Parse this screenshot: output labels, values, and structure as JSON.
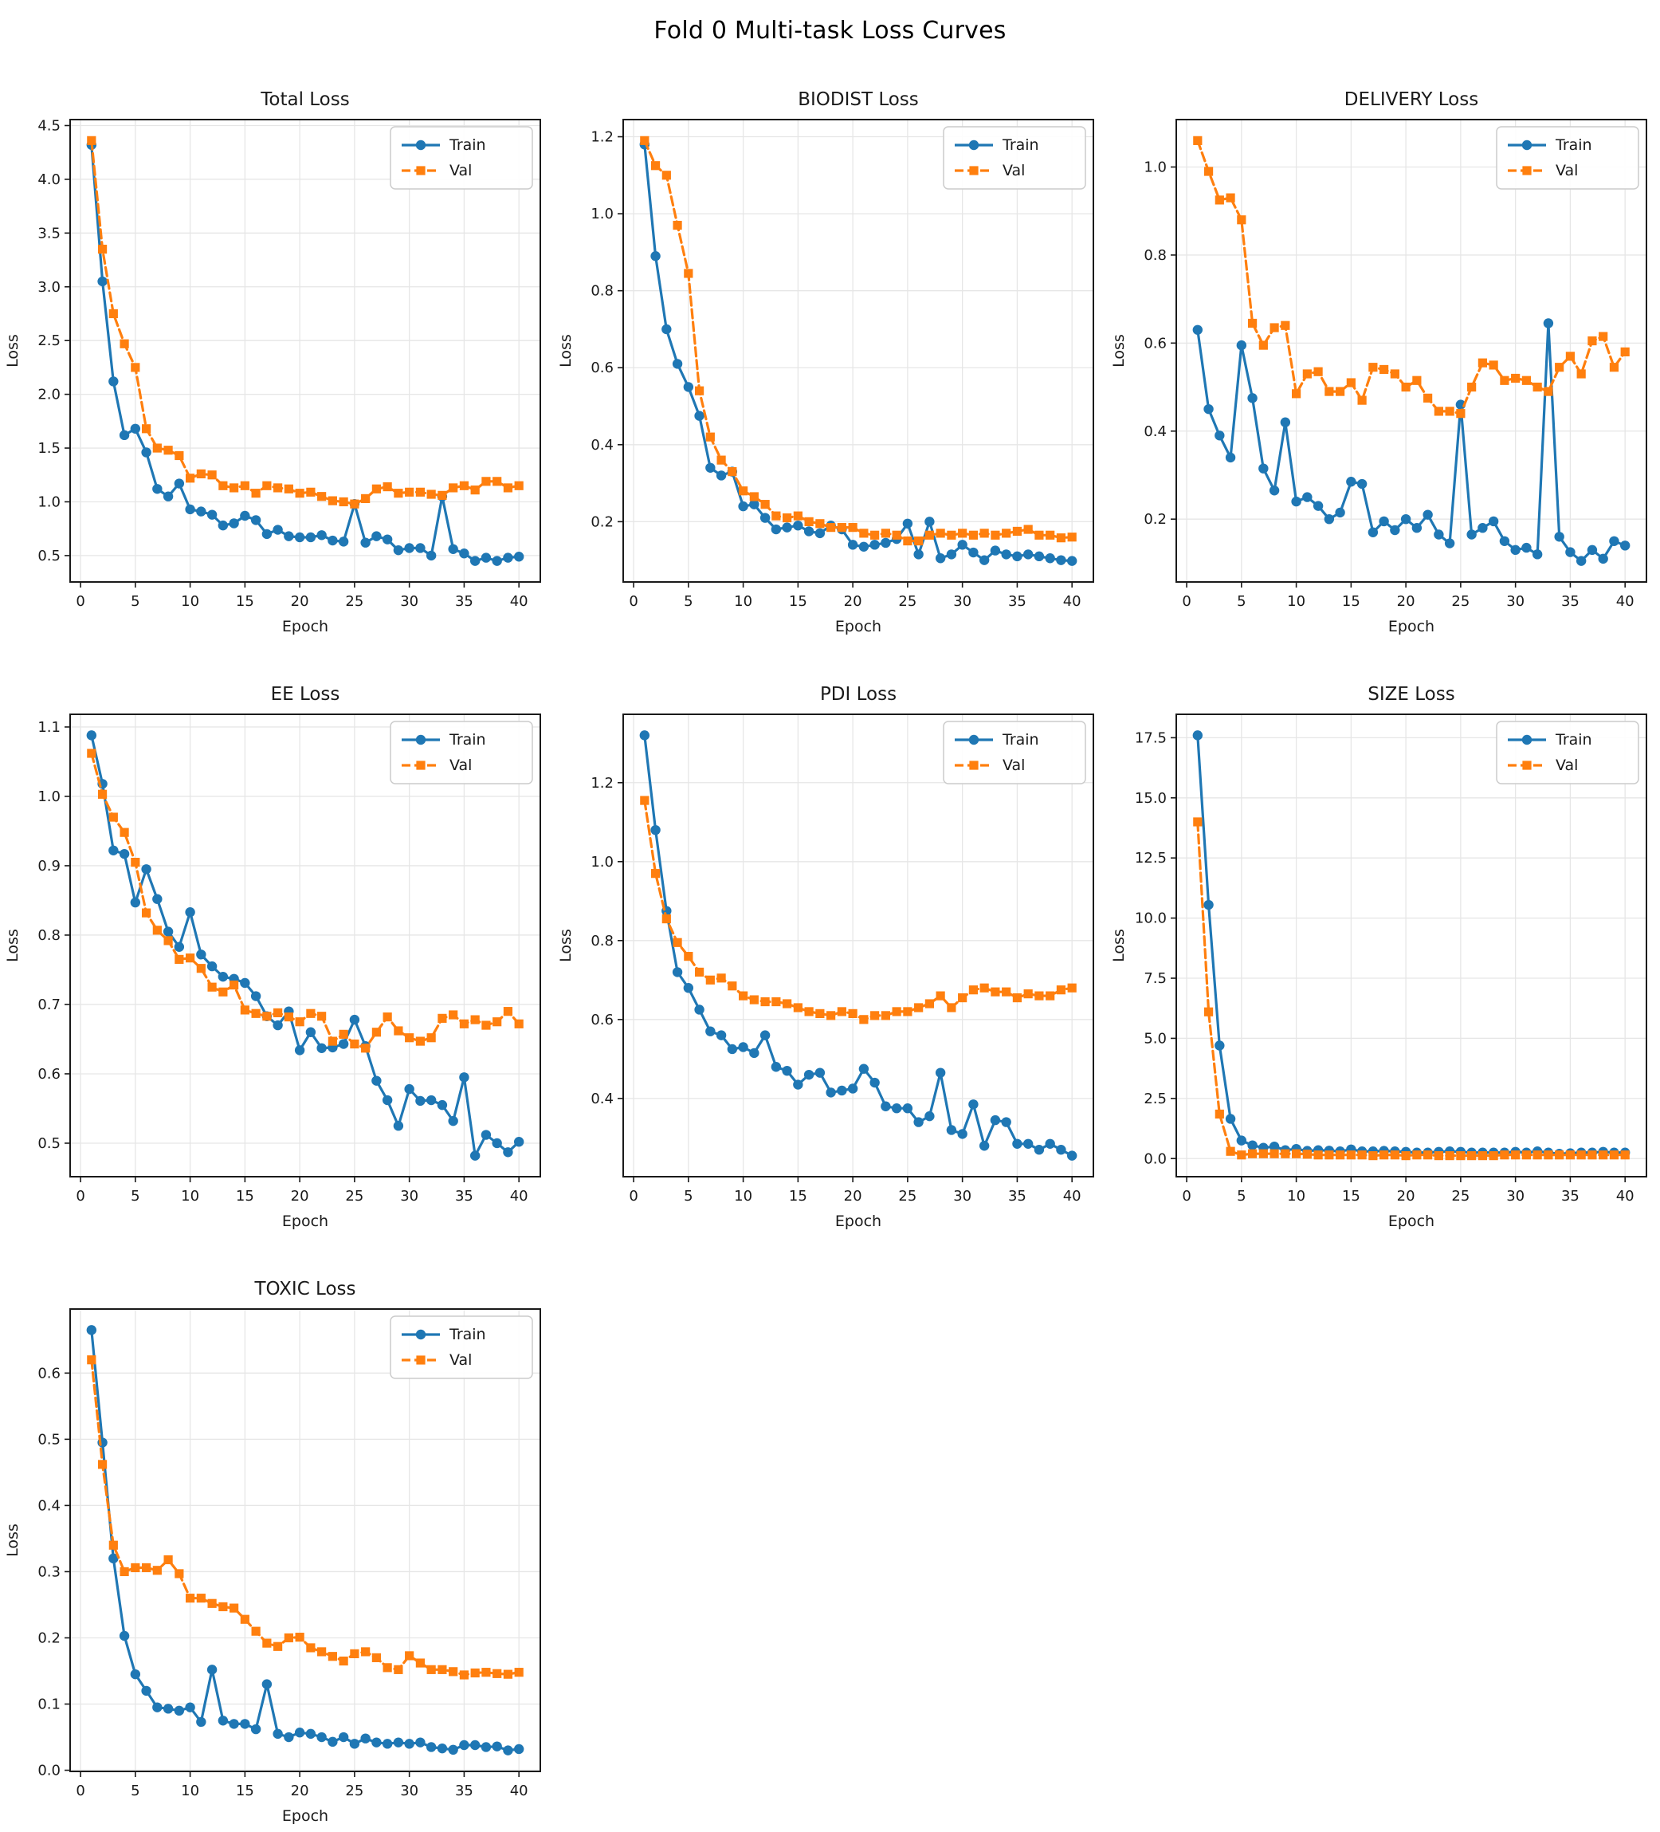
{
  "suptitle": "Fold 0 Multi-task Loss Curves",
  "colors": {
    "train": "#1f77b4",
    "val": "#ff7f0e",
    "grid": "#e6e6e6",
    "spine": "#1a1a1a",
    "legend_border": "#cccccc",
    "background": "#ffffff"
  },
  "legend": {
    "train_label": "Train",
    "val_label": "Val"
  },
  "axes": {
    "xlabel": "Epoch",
    "ylabel": "Loss",
    "xticks": [
      0,
      5,
      10,
      15,
      20,
      25,
      30,
      35,
      40
    ]
  },
  "epochs": [
    1,
    2,
    3,
    4,
    5,
    6,
    7,
    8,
    9,
    10,
    11,
    12,
    13,
    14,
    15,
    16,
    17,
    18,
    19,
    20,
    21,
    22,
    23,
    24,
    25,
    26,
    27,
    28,
    29,
    30,
    31,
    32,
    33,
    34,
    35,
    36,
    37,
    38,
    39,
    40
  ],
  "chart_data": [
    {
      "type": "line",
      "title": "Total Loss",
      "xlabel": "Epoch",
      "ylabel": "Loss",
      "xlim": [
        -0.95,
        41.95
      ],
      "yticks": [
        0.5,
        1.0,
        1.5,
        2.0,
        2.5,
        3.0,
        3.5,
        4.0,
        4.5
      ],
      "legend_position": "upper-right",
      "grid": true,
      "series": [
        {
          "name": "Train",
          "color_key": "train",
          "marker": "circle",
          "line_style": "solid",
          "values": [
            4.32,
            3.05,
            2.12,
            1.62,
            1.68,
            1.46,
            1.12,
            1.05,
            1.17,
            0.93,
            0.91,
            0.88,
            0.78,
            0.8,
            0.87,
            0.83,
            0.7,
            0.74,
            0.68,
            0.67,
            0.67,
            0.69,
            0.64,
            0.63,
            0.98,
            0.62,
            0.68,
            0.65,
            0.55,
            0.57,
            0.57,
            0.5,
            1.05,
            0.56,
            0.52,
            0.45,
            0.48,
            0.45,
            0.48,
            0.49
          ]
        },
        {
          "name": "Val",
          "color_key": "val",
          "marker": "square",
          "line_style": "dashed",
          "values": [
            4.36,
            3.35,
            2.75,
            2.47,
            2.25,
            1.68,
            1.5,
            1.48,
            1.43,
            1.22,
            1.26,
            1.25,
            1.15,
            1.13,
            1.15,
            1.08,
            1.15,
            1.13,
            1.12,
            1.08,
            1.09,
            1.05,
            1.01,
            1.0,
            0.98,
            1.03,
            1.12,
            1.14,
            1.08,
            1.09,
            1.09,
            1.07,
            1.06,
            1.13,
            1.15,
            1.11,
            1.19,
            1.19,
            1.13,
            1.15
          ]
        }
      ]
    },
    {
      "type": "line",
      "title": "BIODIST Loss",
      "xlabel": "Epoch",
      "ylabel": "Loss",
      "xlim": [
        -0.95,
        41.95
      ],
      "yticks": [
        0.2,
        0.4,
        0.6,
        0.8,
        1.0,
        1.2
      ],
      "legend_position": "upper-right",
      "grid": true,
      "series": [
        {
          "name": "Train",
          "color_key": "train",
          "marker": "circle",
          "line_style": "solid",
          "values": [
            1.18,
            0.89,
            0.7,
            0.61,
            0.55,
            0.475,
            0.34,
            0.32,
            0.33,
            0.24,
            0.245,
            0.21,
            0.18,
            0.185,
            0.19,
            0.175,
            0.17,
            0.19,
            0.18,
            0.14,
            0.135,
            0.14,
            0.145,
            0.155,
            0.195,
            0.115,
            0.2,
            0.105,
            0.115,
            0.14,
            0.12,
            0.1,
            0.125,
            0.115,
            0.11,
            0.115,
            0.11,
            0.105,
            0.1,
            0.098
          ]
        },
        {
          "name": "Val",
          "color_key": "val",
          "marker": "square",
          "line_style": "dashed",
          "values": [
            1.19,
            1.125,
            1.1,
            0.97,
            0.845,
            0.54,
            0.42,
            0.36,
            0.33,
            0.28,
            0.265,
            0.245,
            0.215,
            0.21,
            0.215,
            0.2,
            0.195,
            0.185,
            0.185,
            0.185,
            0.17,
            0.165,
            0.17,
            0.165,
            0.15,
            0.15,
            0.165,
            0.17,
            0.165,
            0.17,
            0.165,
            0.17,
            0.165,
            0.17,
            0.175,
            0.18,
            0.165,
            0.165,
            0.158,
            0.16
          ]
        }
      ]
    },
    {
      "type": "line",
      "title": "DELIVERY Loss",
      "xlabel": "Epoch",
      "ylabel": "Loss",
      "xlim": [
        -0.95,
        41.95
      ],
      "yticks": [
        0.2,
        0.4,
        0.6,
        0.8,
        1.0
      ],
      "legend_position": "upper-right",
      "grid": true,
      "series": [
        {
          "name": "Train",
          "color_key": "train",
          "marker": "circle",
          "line_style": "solid",
          "values": [
            0.63,
            0.45,
            0.39,
            0.34,
            0.595,
            0.475,
            0.315,
            0.265,
            0.42,
            0.24,
            0.25,
            0.23,
            0.2,
            0.215,
            0.285,
            0.28,
            0.17,
            0.195,
            0.175,
            0.2,
            0.18,
            0.21,
            0.165,
            0.145,
            0.46,
            0.165,
            0.18,
            0.195,
            0.15,
            0.13,
            0.135,
            0.12,
            0.645,
            0.16,
            0.125,
            0.105,
            0.13,
            0.11,
            0.15,
            0.14
          ]
        },
        {
          "name": "Val",
          "color_key": "val",
          "marker": "square",
          "line_style": "dashed",
          "values": [
            1.06,
            0.99,
            0.925,
            0.93,
            0.88,
            0.645,
            0.595,
            0.635,
            0.64,
            0.485,
            0.53,
            0.535,
            0.49,
            0.49,
            0.51,
            0.47,
            0.545,
            0.54,
            0.53,
            0.5,
            0.515,
            0.475,
            0.445,
            0.445,
            0.44,
            0.5,
            0.555,
            0.55,
            0.515,
            0.52,
            0.515,
            0.5,
            0.49,
            0.545,
            0.57,
            0.53,
            0.605,
            0.615,
            0.545,
            0.58
          ]
        }
      ]
    },
    {
      "type": "line",
      "title": "EE Loss",
      "xlabel": "Epoch",
      "ylabel": "Loss",
      "xlim": [
        -0.95,
        41.95
      ],
      "yticks": [
        0.5,
        0.6,
        0.7,
        0.8,
        0.9,
        1.0,
        1.1
      ],
      "legend_position": "upper-right",
      "grid": true,
      "series": [
        {
          "name": "Train",
          "color_key": "train",
          "marker": "circle",
          "line_style": "solid",
          "values": [
            1.088,
            1.018,
            0.922,
            0.917,
            0.847,
            0.895,
            0.852,
            0.805,
            0.783,
            0.833,
            0.772,
            0.755,
            0.74,
            0.737,
            0.731,
            0.712,
            0.683,
            0.67,
            0.69,
            0.634,
            0.66,
            0.637,
            0.638,
            0.643,
            0.678,
            0.64,
            0.59,
            0.562,
            0.525,
            0.578,
            0.561,
            0.562,
            0.555,
            0.532,
            0.595,
            0.482,
            0.512,
            0.5,
            0.487,
            0.502
          ]
        },
        {
          "name": "Val",
          "color_key": "val",
          "marker": "square",
          "line_style": "dashed",
          "values": [
            1.062,
            1.003,
            0.97,
            0.948,
            0.905,
            0.832,
            0.807,
            0.792,
            0.765,
            0.767,
            0.752,
            0.725,
            0.718,
            0.728,
            0.692,
            0.687,
            0.683,
            0.688,
            0.682,
            0.675,
            0.687,
            0.683,
            0.647,
            0.657,
            0.643,
            0.637,
            0.66,
            0.682,
            0.662,
            0.652,
            0.647,
            0.652,
            0.68,
            0.685,
            0.672,
            0.678,
            0.67,
            0.675,
            0.69,
            0.672
          ]
        }
      ]
    },
    {
      "type": "line",
      "title": "PDI Loss",
      "xlabel": "Epoch",
      "ylabel": "Loss",
      "xlim": [
        -0.95,
        41.95
      ],
      "yticks": [
        0.4,
        0.6,
        0.8,
        1.0,
        1.2
      ],
      "legend_position": "upper-right",
      "grid": true,
      "series": [
        {
          "name": "Train",
          "color_key": "train",
          "marker": "circle",
          "line_style": "solid",
          "values": [
            1.32,
            1.08,
            0.875,
            0.72,
            0.68,
            0.625,
            0.57,
            0.56,
            0.525,
            0.53,
            0.515,
            0.56,
            0.48,
            0.47,
            0.435,
            0.46,
            0.465,
            0.415,
            0.42,
            0.425,
            0.475,
            0.44,
            0.38,
            0.375,
            0.375,
            0.34,
            0.355,
            0.465,
            0.32,
            0.31,
            0.385,
            0.28,
            0.345,
            0.34,
            0.285,
            0.285,
            0.27,
            0.285,
            0.27,
            0.255
          ]
        },
        {
          "name": "Val",
          "color_key": "val",
          "marker": "square",
          "line_style": "dashed",
          "values": [
            1.155,
            0.97,
            0.855,
            0.795,
            0.76,
            0.72,
            0.7,
            0.705,
            0.685,
            0.66,
            0.65,
            0.645,
            0.645,
            0.64,
            0.63,
            0.62,
            0.615,
            0.61,
            0.62,
            0.615,
            0.6,
            0.61,
            0.61,
            0.62,
            0.62,
            0.63,
            0.64,
            0.66,
            0.63,
            0.655,
            0.675,
            0.68,
            0.67,
            0.67,
            0.655,
            0.665,
            0.66,
            0.66,
            0.675,
            0.68
          ]
        }
      ]
    },
    {
      "type": "line",
      "title": "SIZE Loss",
      "xlabel": "Epoch",
      "ylabel": "Loss",
      "xlim": [
        -0.95,
        41.95
      ],
      "yticks": [
        0.0,
        2.5,
        5.0,
        7.5,
        10.0,
        12.5,
        15.0,
        17.5
      ],
      "legend_position": "upper-right",
      "grid": true,
      "series": [
        {
          "name": "Train",
          "color_key": "train",
          "marker": "circle",
          "line_style": "solid",
          "values": [
            17.6,
            10.55,
            4.7,
            1.65,
            0.75,
            0.55,
            0.45,
            0.5,
            0.35,
            0.4,
            0.32,
            0.35,
            0.33,
            0.3,
            0.38,
            0.3,
            0.3,
            0.32,
            0.3,
            0.28,
            0.25,
            0.25,
            0.28,
            0.3,
            0.28,
            0.25,
            0.25,
            0.25,
            0.25,
            0.28,
            0.25,
            0.3,
            0.25,
            0.2,
            0.22,
            0.25,
            0.25,
            0.28,
            0.25,
            0.25
          ]
        },
        {
          "name": "Val",
          "color_key": "val",
          "marker": "square",
          "line_style": "dashed",
          "values": [
            14.0,
            6.1,
            1.85,
            0.3,
            0.15,
            0.2,
            0.2,
            0.2,
            0.2,
            0.2,
            0.18,
            0.15,
            0.15,
            0.15,
            0.15,
            0.15,
            0.12,
            0.15,
            0.15,
            0.12,
            0.15,
            0.15,
            0.12,
            0.12,
            0.12,
            0.12,
            0.12,
            0.12,
            0.15,
            0.15,
            0.15,
            0.15,
            0.15,
            0.15,
            0.15,
            0.15,
            0.15,
            0.15,
            0.15,
            0.15
          ]
        }
      ]
    },
    {
      "type": "line",
      "title": "TOXIC Loss",
      "xlabel": "Epoch",
      "ylabel": "Loss",
      "xlim": [
        -0.95,
        41.95
      ],
      "yticks": [
        0.0,
        0.1,
        0.2,
        0.3,
        0.4,
        0.5,
        0.6
      ],
      "legend_position": "upper-right",
      "grid": true,
      "series": [
        {
          "name": "Train",
          "color_key": "train",
          "marker": "circle",
          "line_style": "solid",
          "values": [
            0.665,
            0.495,
            0.32,
            0.203,
            0.145,
            0.12,
            0.095,
            0.093,
            0.09,
            0.095,
            0.073,
            0.152,
            0.075,
            0.07,
            0.07,
            0.062,
            0.13,
            0.055,
            0.05,
            0.057,
            0.055,
            0.05,
            0.043,
            0.05,
            0.04,
            0.048,
            0.042,
            0.04,
            0.042,
            0.04,
            0.042,
            0.035,
            0.033,
            0.031,
            0.038,
            0.038,
            0.035,
            0.036,
            0.03,
            0.032
          ]
        },
        {
          "name": "Val",
          "color_key": "val",
          "marker": "square",
          "line_style": "dashed",
          "values": [
            0.62,
            0.462,
            0.34,
            0.3,
            0.306,
            0.306,
            0.302,
            0.318,
            0.297,
            0.26,
            0.26,
            0.252,
            0.247,
            0.245,
            0.228,
            0.21,
            0.192,
            0.187,
            0.2,
            0.201,
            0.185,
            0.179,
            0.172,
            0.165,
            0.176,
            0.179,
            0.17,
            0.155,
            0.152,
            0.173,
            0.162,
            0.152,
            0.152,
            0.149,
            0.144,
            0.147,
            0.148,
            0.146,
            0.145,
            0.148
          ]
        }
      ]
    }
  ]
}
